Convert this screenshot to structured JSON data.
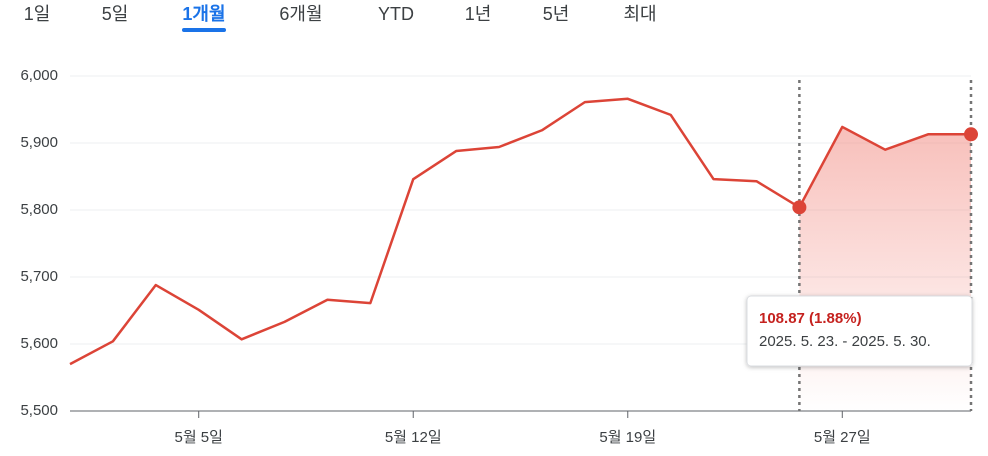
{
  "tabs": [
    "1일",
    "5일",
    "1개월",
    "6개월",
    "YTD",
    "1년",
    "5년",
    "최대"
  ],
  "active_tab": 2,
  "chart_data": {
    "type": "line",
    "categories": [
      null,
      null,
      null,
      "5월 5일",
      null,
      null,
      null,
      null,
      "5월 12일",
      null,
      null,
      null,
      null,
      "5월 19일",
      null,
      null,
      null,
      null,
      "5월 27일",
      null,
      null,
      null
    ],
    "series": [
      {
        "name": null,
        "color": "#dc4437",
        "values": [
          5570,
          5604,
          5688,
          5651,
          5607,
          5633,
          5666,
          5661,
          5846,
          5888,
          5894,
          5919,
          5961,
          5966,
          5942,
          5846,
          5843,
          5804,
          5924,
          5890,
          5913,
          5913
        ]
      }
    ],
    "ylim": [
      5500,
      6000
    ],
    "yticks": [
      {
        "value": 5500,
        "label": "5,500"
      },
      {
        "value": 5600,
        "label": "5,600"
      },
      {
        "value": 5700,
        "label": "5,700"
      },
      {
        "value": 5800,
        "label": "5,800"
      },
      {
        "value": 5900,
        "label": "5,900"
      },
      {
        "value": 6000,
        "label": "6,000"
      }
    ],
    "grid": true,
    "selection": {
      "start": 17,
      "end": 21
    },
    "tooltip": {
      "change": "108.87 (1.88%)",
      "range": "2025. 5. 23. - 2025. 5. 30."
    }
  }
}
